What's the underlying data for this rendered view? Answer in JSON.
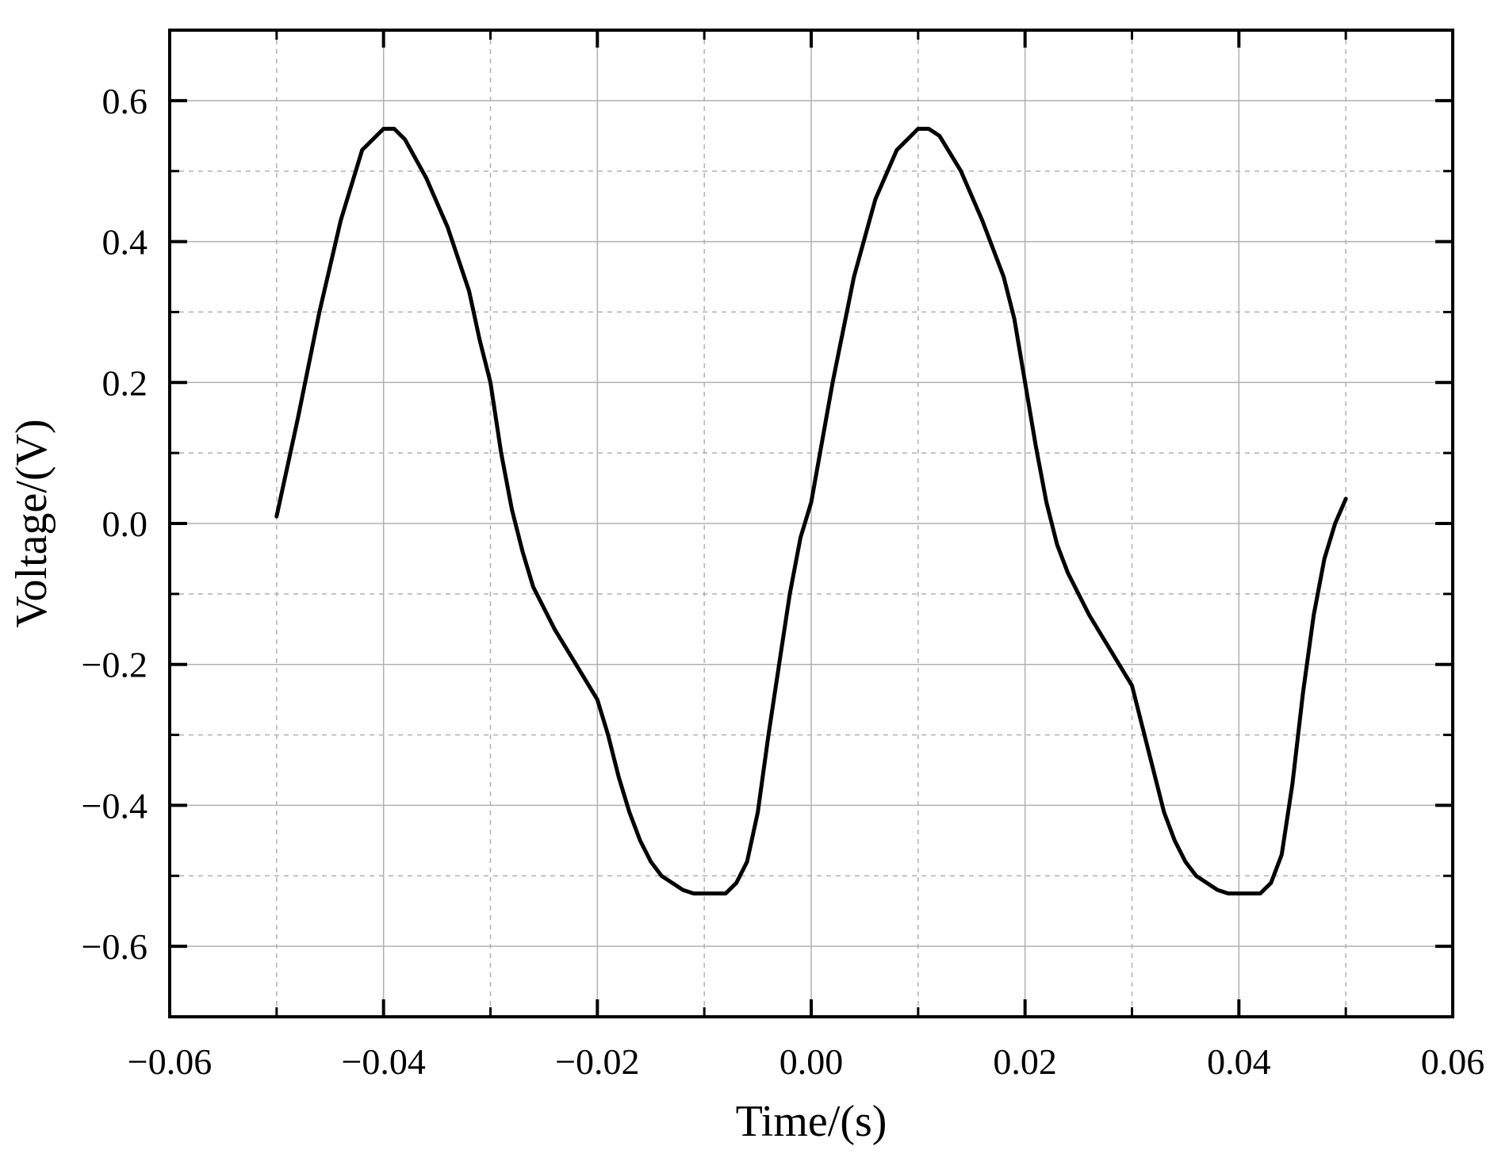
{
  "chart_data": {
    "type": "line",
    "title": "",
    "xlabel": "Time/(s)",
    "ylabel": "Voltage/(V)",
    "xlim": [
      -0.06,
      0.06
    ],
    "ylim": [
      -0.7,
      0.7
    ],
    "x_ticks": [
      -0.06,
      -0.04,
      -0.02,
      0.0,
      0.02,
      0.04,
      0.06
    ],
    "x_tick_labels": [
      "−0.06",
      "−0.04",
      "−0.02",
      "0.00",
      "0.02",
      "0.04",
      "0.06"
    ],
    "y_ticks": [
      -0.6,
      -0.4,
      -0.2,
      0.0,
      0.2,
      0.4,
      0.6
    ],
    "y_tick_labels": [
      "−0.6",
      "−0.4",
      "−0.2",
      "0.0",
      "0.2",
      "0.4",
      "0.6"
    ],
    "grid": true,
    "grid_color": "#b0b0b0",
    "line_color": "#000000",
    "series": [
      {
        "x": [
          -0.05,
          -0.048,
          -0.046,
          -0.044,
          -0.042,
          -0.04,
          -0.039,
          -0.038,
          -0.036,
          -0.034,
          -0.032,
          -0.031,
          -0.03,
          -0.029,
          -0.028,
          -0.027,
          -0.026,
          -0.025,
          -0.024,
          -0.022,
          -0.02,
          -0.019,
          -0.018,
          -0.017,
          -0.016,
          -0.015,
          -0.014,
          -0.013,
          -0.012,
          -0.011,
          -0.01,
          -0.009,
          -0.008,
          -0.007,
          -0.006,
          -0.005,
          -0.004,
          -0.003,
          -0.002,
          -0.001,
          0.0,
          0.002,
          0.004,
          0.006,
          0.008,
          0.01,
          0.011,
          0.012,
          0.014,
          0.016,
          0.018,
          0.019,
          0.02,
          0.021,
          0.022,
          0.023,
          0.024,
          0.025,
          0.026,
          0.028,
          0.03,
          0.031,
          0.032,
          0.033,
          0.034,
          0.035,
          0.036,
          0.037,
          0.038,
          0.039,
          0.04,
          0.041,
          0.042,
          0.043,
          0.044,
          0.045,
          0.046,
          0.047,
          0.048,
          0.049,
          0.05
        ],
        "y": [
          0.01,
          0.15,
          0.3,
          0.43,
          0.53,
          0.56,
          0.56,
          0.545,
          0.49,
          0.42,
          0.33,
          0.26,
          0.2,
          0.1,
          0.02,
          -0.04,
          -0.09,
          -0.12,
          -0.15,
          -0.2,
          -0.25,
          -0.3,
          -0.36,
          -0.41,
          -0.45,
          -0.48,
          -0.5,
          -0.51,
          -0.52,
          -0.525,
          -0.525,
          -0.525,
          -0.525,
          -0.51,
          -0.48,
          -0.41,
          -0.3,
          -0.2,
          -0.1,
          -0.02,
          0.03,
          0.2,
          0.35,
          0.46,
          0.53,
          0.56,
          0.56,
          0.55,
          0.5,
          0.43,
          0.35,
          0.29,
          0.2,
          0.11,
          0.03,
          -0.03,
          -0.07,
          -0.1,
          -0.13,
          -0.18,
          -0.23,
          -0.29,
          -0.35,
          -0.41,
          -0.45,
          -0.48,
          -0.5,
          -0.51,
          -0.52,
          -0.525,
          -0.525,
          -0.525,
          -0.525,
          -0.51,
          -0.47,
          -0.37,
          -0.24,
          -0.13,
          -0.05,
          0.0,
          0.035
        ]
      }
    ]
  }
}
